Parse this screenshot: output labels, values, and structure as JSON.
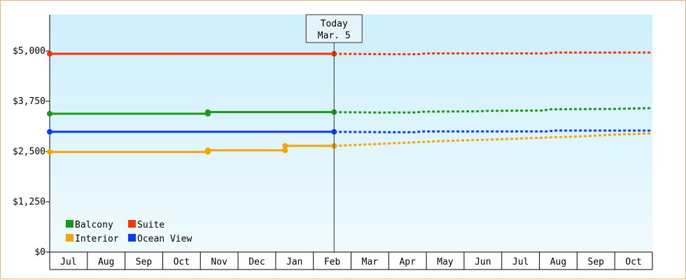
{
  "chart_data": {
    "type": "line",
    "currency_prefix": "$",
    "y_ticks": [
      "$0",
      "$1,250",
      "$2,500",
      "$3,750",
      "$5,000"
    ],
    "y_tick_values": [
      0,
      1250,
      2500,
      3750,
      5000
    ],
    "ylim": [
      0,
      5000
    ],
    "months": [
      "Jul",
      "Aug",
      "Sep",
      "Oct",
      "Nov",
      "Dec",
      "Jan",
      "Feb",
      "Mar",
      "Apr",
      "May",
      "Jun",
      "Jul",
      "Aug",
      "Sep",
      "Oct"
    ],
    "today": {
      "title": "Today",
      "date_label": "Mar. 5",
      "x": 7.55
    },
    "legend_placement": "bottom-left",
    "background_gradient": [
      "#cdeffb",
      "#f0fafe"
    ],
    "series": [
      {
        "name": "Balcony",
        "color": "#1a9a1a",
        "actual": [
          [
            0,
            3440
          ],
          [
            4.2,
            3440
          ],
          [
            4.2,
            3480
          ],
          [
            7.55,
            3480
          ]
        ],
        "actual_markers": [
          [
            0,
            3440
          ],
          [
            4.2,
            3440
          ],
          [
            4.2,
            3480
          ],
          [
            7.55,
            3480
          ]
        ],
        "forecast": [
          [
            7.55,
            3480
          ],
          [
            8.6,
            3470
          ],
          [
            9.7,
            3470
          ],
          [
            9.9,
            3490
          ],
          [
            11.4,
            3500
          ],
          [
            11.6,
            3510
          ],
          [
            13.1,
            3520
          ],
          [
            13.3,
            3550
          ],
          [
            15.0,
            3560
          ],
          [
            16.0,
            3580
          ]
        ]
      },
      {
        "name": "Suite",
        "color": "#ff3300",
        "actual": [
          [
            0,
            4930
          ],
          [
            7.55,
            4930
          ]
        ],
        "actual_markers": [
          [
            0,
            4930
          ],
          [
            7.55,
            4930
          ]
        ],
        "forecast": [
          [
            7.55,
            4930
          ],
          [
            9.0,
            4920
          ],
          [
            9.8,
            4920
          ],
          [
            10.0,
            4940
          ],
          [
            13.2,
            4940
          ],
          [
            13.4,
            4960
          ],
          [
            16.0,
            4960
          ]
        ]
      },
      {
        "name": "Interior",
        "color": "#f5a500",
        "actual": [
          [
            0,
            2490
          ],
          [
            4.2,
            2490
          ],
          [
            4.2,
            2530
          ],
          [
            6.25,
            2530
          ],
          [
            6.25,
            2640
          ],
          [
            7.55,
            2640
          ]
        ],
        "actual_markers": [
          [
            0,
            2490
          ],
          [
            4.2,
            2490
          ],
          [
            4.2,
            2530
          ],
          [
            6.25,
            2530
          ],
          [
            6.25,
            2640
          ],
          [
            7.55,
            2640
          ]
        ],
        "forecast": [
          [
            7.55,
            2640
          ],
          [
            9.0,
            2700
          ],
          [
            10.4,
            2760
          ],
          [
            11.8,
            2800
          ],
          [
            13.0,
            2840
          ],
          [
            14.2,
            2880
          ],
          [
            15.0,
            2920
          ],
          [
            16.0,
            2950
          ]
        ]
      },
      {
        "name": "Ocean View",
        "color": "#0a3cff",
        "actual": [
          [
            0,
            2990
          ],
          [
            7.55,
            2990
          ]
        ],
        "actual_markers": [
          [
            0,
            2990
          ],
          [
            7.55,
            2990
          ]
        ],
        "forecast": [
          [
            7.55,
            2990
          ],
          [
            9.0,
            2980
          ],
          [
            9.7,
            2980
          ],
          [
            9.9,
            3000
          ],
          [
            13.2,
            3000
          ],
          [
            13.4,
            3020
          ],
          [
            16.0,
            3020
          ]
        ]
      }
    ],
    "legend_order": [
      "Balcony",
      "Suite",
      "Interior",
      "Ocean View"
    ]
  }
}
